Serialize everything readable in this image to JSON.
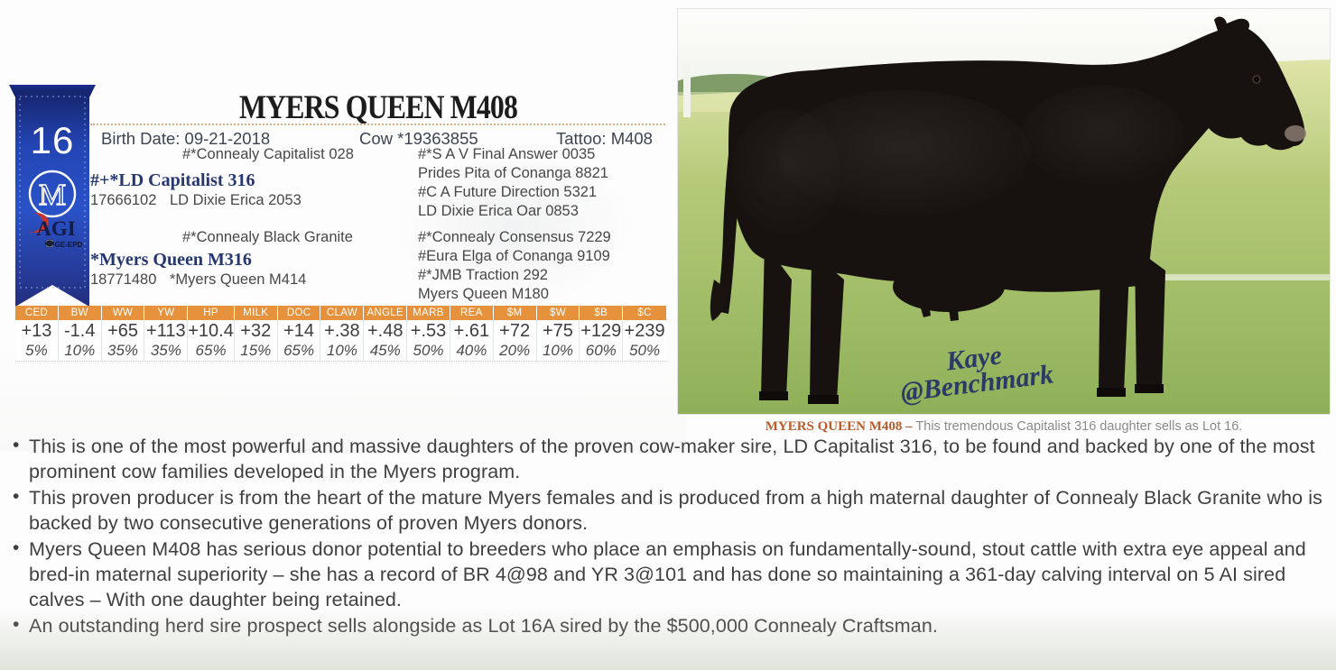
{
  "lot": {
    "number": "16",
    "brand_logo": "circle-M",
    "agi_label": "AGI",
    "ge_epd_label": "GE-EPD"
  },
  "header": {
    "title": "MYERS QUEEN M408",
    "birth_date_label": "Birth Date: ",
    "birth_date": "09-21-2018",
    "sex_reg": "Cow *19363855",
    "tattoo_label": "Tattoo: ",
    "tattoo": "M408"
  },
  "pedigree": {
    "sire": {
      "grandsire": "#*Connealy Capitalist 028",
      "name": "#+*LD Capitalist 316",
      "reg": "17666102",
      "granddam": "LD Dixie Erica 2053",
      "ggsire1": "#*S A V Final Answer 0035",
      "ggdam1": "Prides Pita of Conanga 8821",
      "ggsire2": "#C A Future Direction 5321",
      "ggdam2": "LD Dixie Erica Oar 0853"
    },
    "dam": {
      "grandsire": "#*Connealy Black Granite",
      "name": "*Myers Queen M316",
      "reg": "18771480",
      "granddam": "*Myers Queen M414",
      "ggsire1": "#*Connealy Consensus 7229",
      "ggdam1": "#Eura Elga of Conanga 9109",
      "ggsire2": "#*JMB Traction 292",
      "ggdam2": "Myers Queen M180"
    }
  },
  "epd": {
    "columns": [
      {
        "h": "CED",
        "v": "+13",
        "p": "5%"
      },
      {
        "h": "BW",
        "v": "-1.4",
        "p": "10%"
      },
      {
        "h": "WW",
        "v": "+65",
        "p": "35%"
      },
      {
        "h": "YW",
        "v": "+113",
        "p": "35%"
      },
      {
        "h": "HP",
        "v": "+10.4",
        "p": "65%"
      },
      {
        "h": "MILK",
        "v": "+32",
        "p": "15%"
      },
      {
        "h": "DOC",
        "v": "+14",
        "p": "65%"
      },
      {
        "h": "CLAW",
        "v": "+.38",
        "p": "10%"
      },
      {
        "h": "ANGLE",
        "v": "+.48",
        "p": "45%"
      },
      {
        "h": "MARB",
        "v": "+.53",
        "p": "50%"
      },
      {
        "h": "REA",
        "v": "+.61",
        "p": "40%"
      },
      {
        "h": "$M",
        "v": "+72",
        "p": "20%"
      },
      {
        "h": "$W",
        "v": "+75",
        "p": "10%"
      },
      {
        "h": "$B",
        "v": "+129",
        "p": "60%"
      },
      {
        "h": "$C",
        "v": "+239",
        "p": "50%"
      }
    ]
  },
  "photo": {
    "subject": "black Angus cow standing in profile facing right on green pasture",
    "watermark_line1": "Kaye",
    "watermark_line2": "@Benchmark",
    "caption_bold": "MYERS QUEEN M408 –",
    "caption_text": " This tremendous Capitalist 316 daughter sells as Lot 16."
  },
  "bullets": [
    "This is one of the most powerful and massive daughters of the proven cow-maker sire, LD Capitalist 316, to be found and backed by one of the most prominent cow families developed in the Myers program.",
    "This proven producer is from the heart of the mature Myers females and is produced from a high maternal daughter of Connealy Black Granite who is backed by two consecutive generations of proven Myers donors.",
    "Myers Queen M408 has serious donor potential to breeders who place an emphasis on fundamentally-sound, stout cattle with extra eye appeal and bred-in maternal superiority – she has a record of BR 4@98 and YR 3@101 and has done so maintaining a 361-day calving interval on 5 AI sired calves – With one daughter being retained.",
    "An outstanding herd sire prospect sells alongside as Lot 16A sired by the $500,000 Connealy Craftsman."
  ],
  "colors": {
    "epd_header_orange": "#e6923c",
    "caption_rust": "#b85c2b",
    "pedigree_blue": "#26366f",
    "ribbon_blue": "#2a52c8",
    "title_rule_tan": "#dcb084"
  }
}
